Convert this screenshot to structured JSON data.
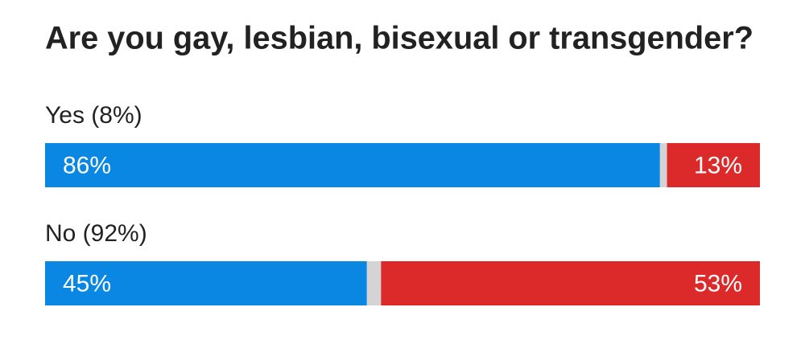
{
  "chart_data": {
    "type": "stacked-bar-horizontal",
    "title": "Are you gay, lesbian, bisexual or transgender?",
    "categories": [
      "Yes (8%)",
      "No (92%)"
    ],
    "xlim": [
      0,
      100
    ],
    "series": [
      {
        "color": "#0a87e3",
        "values": [
          86,
          45
        ],
        "value_labels": [
          "86%",
          "45%"
        ],
        "side": "left"
      },
      {
        "color": "#dc2a2a",
        "values": [
          13,
          53
        ],
        "value_labels": [
          "13%",
          "53%"
        ],
        "side": "right"
      }
    ],
    "track_color": "#d4d4d4"
  }
}
